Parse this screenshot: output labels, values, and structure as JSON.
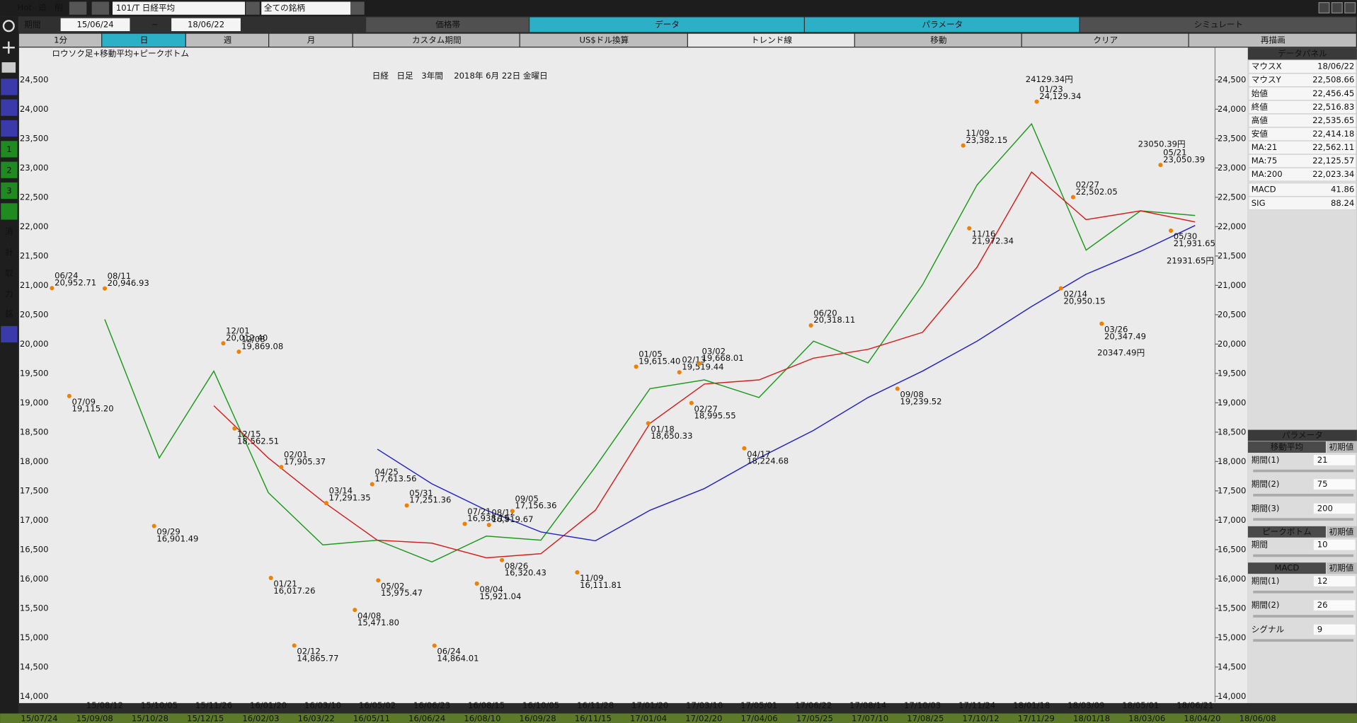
{
  "toolbar": {
    "hot": "Hot",
    "add": "追",
    "del": "削",
    "symbol": "101/T 日経平均",
    "universe": "全ての銘柄",
    "period_label": "期間",
    "from": "15/06/24",
    "tilde": "~",
    "to": "18/06/22",
    "tabs": [
      "価格帯",
      "データ",
      "パラメータ",
      "シミュレート"
    ]
  },
  "buttons": [
    "1分",
    "日",
    "週",
    "月",
    "カスタム期間",
    "US$ドル換算",
    "トレンド線",
    "移動",
    "クリア",
    "再描画"
  ],
  "sidebar": [
    "1",
    "2",
    "3",
    "消",
    "計",
    "取",
    "力",
    "銘"
  ],
  "chart_data": {
    "type": "line",
    "title": "日経　日足　3年間　 2018年 6月 22日 金曜日",
    "subtitle": "ロウソク足+移動平均+ピークボトム",
    "categories": [
      "15/08/12",
      "15/10/05",
      "15/11/26",
      "16/01/20",
      "16/03/10",
      "16/05/02",
      "16/06/23",
      "16/08/15",
      "16/10/05",
      "16/11/28",
      "17/01/20",
      "17/03/10",
      "17/05/01",
      "17/06/22",
      "17/08/14",
      "17/10/03",
      "17/11/24",
      "18/01/18",
      "18/03/09",
      "18/05/01",
      "18/06/21"
    ],
    "series": [
      {
        "name": "MA:21",
        "color": "#1f9a1f",
        "values": [
          20420,
          18060,
          19540,
          17470,
          16580,
          16660,
          16290,
          16730,
          16660,
          17910,
          19240,
          19390,
          19090,
          20050,
          19680,
          21010,
          22710,
          23750,
          21600,
          22270,
          22190
        ]
      },
      {
        "name": "MA:75",
        "color": "#d42020",
        "values": [
          null,
          null,
          18950,
          18060,
          17320,
          16660,
          16610,
          16360,
          16430,
          17170,
          18650,
          19320,
          19390,
          19760,
          19910,
          20200,
          21310,
          22930,
          22120,
          22270,
          22080
        ]
      },
      {
        "name": "MA:200",
        "color": "#2424c4",
        "values": [
          null,
          null,
          null,
          null,
          null,
          18210,
          17620,
          17170,
          16800,
          16650,
          17170,
          17540,
          18060,
          18530,
          19090,
          19540,
          20050,
          20640,
          21190,
          21580,
          22020
        ]
      }
    ],
    "ylim": [
      13900,
      25050
    ],
    "yticks": [
      {
        "value": 14000,
        "label": "14,000"
      },
      {
        "value": 14500,
        "label": "14,500"
      },
      {
        "value": 15000,
        "label": "15,000"
      },
      {
        "value": 15500,
        "label": "15,500"
      },
      {
        "value": 16000,
        "label": "16,000"
      },
      {
        "value": 16500,
        "label": "16,500"
      },
      {
        "value": 17000,
        "label": "17,000"
      },
      {
        "value": 17500,
        "label": "17,500"
      },
      {
        "value": 18000,
        "label": "18,000"
      },
      {
        "value": 18500,
        "label": "18,500"
      },
      {
        "value": 19000,
        "label": "19,000"
      },
      {
        "value": 19500,
        "label": "19,500"
      },
      {
        "value": 20000,
        "label": "20,000"
      },
      {
        "value": 20500,
        "label": "20,500"
      },
      {
        "value": 21000,
        "label": "21,000"
      },
      {
        "value": 21500,
        "label": "21,500"
      },
      {
        "value": 22000,
        "label": "22,000"
      },
      {
        "value": 22500,
        "label": "22,500"
      },
      {
        "value": 23000,
        "label": "23,000"
      },
      {
        "value": 23500,
        "label": "23,500"
      },
      {
        "value": 24000,
        "label": "24,000"
      },
      {
        "value": 24500,
        "label": "24,500"
      }
    ],
    "peaks": {
      "color": "#f08000",
      "dates": [
        "06/24",
        "08/11",
        "07/09",
        "09/29",
        "12/01",
        "12/08",
        "12/15",
        "01/21",
        "02/01",
        "02/12",
        "03/14",
        "04/08",
        "04/25",
        "05/02",
        "05/31",
        "06/24",
        "07/21",
        "08/04",
        "08/12",
        "08/26",
        "09/05",
        "11/09",
        "01/05",
        "01/18",
        "02/13",
        "02/27",
        "03/02",
        "04/17",
        "06/20",
        "09/08",
        "11/09",
        "11/16",
        "01/23",
        "02/14",
        "02/27",
        "03/26",
        "05/21",
        "05/30"
      ],
      "values": [
        20952.71,
        20946.93,
        19115.2,
        16901.49,
        20012.4,
        19869.08,
        18562.51,
        16017.26,
        17905.37,
        14865.77,
        17291.35,
        15471.8,
        17613.56,
        15975.47,
        17251.36,
        14864.01,
        16938.15,
        15921.04,
        16919.67,
        16320.43,
        17156.36,
        16111.81,
        19615.4,
        18650.33,
        19519.44,
        18995.55,
        19668.01,
        18224.68,
        20318.11,
        19239.52,
        23382.15,
        21972.34,
        24129.34,
        20950.15,
        22502.05,
        20347.49,
        23050.39,
        21931.65
      ],
      "value_labels": [
        "20,952.71",
        "20,946.93",
        "19,115.20",
        "16,901.49",
        "20,012.40",
        "19,869.08",
        "18,562.51",
        "16,017.26",
        "17,905.37",
        "14,865.77",
        "17,291.35",
        "15,471.80",
        "17,613.56",
        "15,975.47",
        "17,251.36",
        "14,864.01",
        "16,938.15",
        "15,921.04",
        "16,919.67",
        "16,320.43",
        "17,156.36",
        "16,111.81",
        "19,615.40",
        "18,650.33",
        "19,519.44",
        "18,995.55",
        "19,668.01",
        "18,224.68",
        "20,318.11",
        "19,239.52",
        "23,382.15",
        "21,972.34",
        "24,129.34",
        "20,950.15",
        "22,502.05",
        "20,347.49",
        "23,050.39",
        "21,931.65"
      ]
    },
    "annotations": [
      "24129.34円",
      "23050.39円",
      "21931.65円",
      "20347.49円"
    ]
  },
  "data_panel": {
    "title": "データパネル",
    "price_rows": [
      [
        "マウスX",
        "18/06/22"
      ],
      [
        "マウスY",
        "22,508.66"
      ],
      [
        "始値",
        "22,456.45"
      ],
      [
        "終値",
        "22,516.83"
      ],
      [
        "高値",
        "22,535.65"
      ],
      [
        "安値",
        "22,414.18"
      ]
    ],
    "ma_values": [
      "22,562.11",
      "22,125.57",
      "22,023.34"
    ],
    "macd_rows": [
      [
        "MACD",
        "41.86"
      ],
      [
        "SIG",
        "88.24"
      ]
    ]
  },
  "parameters": {
    "title": "パラメータ",
    "reset": "初期値",
    "groups": [
      {
        "name": "移動平均",
        "items": [
          {
            "label": "期間(1)",
            "value": 21
          },
          {
            "label": "期間(2)",
            "value": 75
          },
          {
            "label": "期間(3)",
            "value": 200
          }
        ]
      },
      {
        "name": "ピークボトム",
        "items": [
          {
            "label": "期間",
            "value": 10
          }
        ]
      },
      {
        "name": "MACD",
        "items": [
          {
            "label": "期間(1)",
            "value": 12
          },
          {
            "label": "期間(2)",
            "value": 26
          },
          {
            "label": "シグナル",
            "value": 9
          }
        ]
      }
    ]
  },
  "scrollbar": {
    "labels": [
      "15/07/24",
      "15/09/08",
      "15/10/28",
      "15/12/15",
      "16/02/03",
      "16/03/22",
      "16/05/11",
      "16/06/24",
      "16/08/10",
      "16/09/28",
      "16/11/15",
      "17/01/04",
      "17/02/20",
      "17/04/06",
      "17/05/25",
      "17/07/10",
      "17/08/25",
      "17/10/12",
      "17/11/29",
      "18/01/18",
      "18/03/06",
      "18/04/20",
      "18/06/08"
    ]
  }
}
